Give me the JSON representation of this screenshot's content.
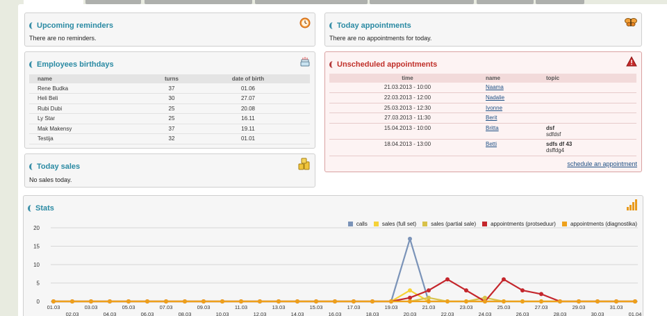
{
  "colors": {
    "accent_title": "#2a8aa3",
    "alert_title": "#c0302a",
    "link": "#1e4f84"
  },
  "reminders": {
    "title": "Upcoming reminders",
    "empty_text": "There are no reminders.",
    "icon": "clock-icon"
  },
  "today_appointments": {
    "title": "Today appointments",
    "empty_text": "There are no appointments for today.",
    "icon": "butterfly-icon"
  },
  "birthdays": {
    "title": "Employees birthdays",
    "icon": "cake-icon",
    "columns": [
      "name",
      "turns",
      "date of birth"
    ],
    "rows": [
      [
        "Rene Budka",
        "37",
        "01.06"
      ],
      [
        "Heli Beli",
        "30",
        "27.07"
      ],
      [
        "Rubi Dubi",
        "25",
        "20.08"
      ],
      [
        "Ly Star",
        "25",
        "16.11"
      ],
      [
        "Mak Makensy",
        "37",
        "19.11"
      ],
      [
        "Testija",
        "32",
        "01.01"
      ]
    ]
  },
  "unscheduled": {
    "title": "Unscheduled appointments",
    "icon": "warning-icon",
    "columns": [
      "time",
      "name",
      "topic"
    ],
    "rows": [
      {
        "time": "21.03.2013 - 10:00",
        "name": "Naama",
        "topic": "",
        "topic_sub": ""
      },
      {
        "time": "22.03.2013 - 12:00",
        "name": "Nadalie",
        "topic": "",
        "topic_sub": ""
      },
      {
        "time": "25.03.2013 - 12:30",
        "name": "Ivonne",
        "topic": "",
        "topic_sub": ""
      },
      {
        "time": "27.03.2013 - 11:30",
        "name": "Berit",
        "topic": "",
        "topic_sub": ""
      },
      {
        "time": "15.04.2013 - 10:00",
        "name": "Britta",
        "topic": "dsf",
        "topic_sub": "sdfdsf"
      },
      {
        "time": "18.04.2013 - 13:00",
        "name": "Betti",
        "topic": "sdfs df 43",
        "topic_sub": "dsffdg4"
      }
    ],
    "schedule_link": "schedule an appointment"
  },
  "today_sales": {
    "title": "Today sales",
    "empty_text": "No sales today.",
    "icon": "coins-icon"
  },
  "stats": {
    "title": "Stats",
    "icon": "bar-chart-icon"
  },
  "chart_data": {
    "type": "line",
    "title": "",
    "xlabel": "",
    "ylabel": "",
    "ylim": [
      0,
      20
    ],
    "yticks": [
      0,
      5,
      10,
      15,
      20
    ],
    "grid": true,
    "legend_position": "top-right",
    "x": [
      "01.03",
      "02.03",
      "03.03",
      "04.03",
      "05.03",
      "06.03",
      "07.03",
      "08.03",
      "09.03",
      "10.03",
      "11.03",
      "12.03",
      "13.03",
      "14.03",
      "15.03",
      "16.03",
      "17.03",
      "18.03",
      "19.03",
      "20.03",
      "21.03",
      "22.03",
      "23.03",
      "24.03",
      "25.03",
      "26.03",
      "27.03",
      "28.03",
      "29.03",
      "30.03",
      "31.03",
      "01.04"
    ],
    "series": [
      {
        "name": "calls",
        "color": "#7a93b8",
        "values": [
          0,
          0,
          0,
          0,
          0,
          0,
          0,
          0,
          0,
          0,
          0,
          0,
          0,
          0,
          0,
          0,
          0,
          0,
          0,
          17,
          0,
          0,
          0,
          0,
          0,
          0,
          0,
          0,
          0,
          0,
          0,
          0
        ]
      },
      {
        "name": "sales (full set)",
        "color": "#f5d238",
        "values": [
          0,
          0,
          0,
          0,
          0,
          0,
          0,
          0,
          0,
          0,
          0,
          0,
          0,
          0,
          0,
          0,
          0,
          0,
          0,
          3,
          0,
          0,
          0,
          0,
          0,
          0,
          0,
          0,
          0,
          0,
          0,
          0
        ]
      },
      {
        "name": "sales (partial sale)",
        "color": "#d8c24a",
        "values": [
          0,
          0,
          0,
          0,
          0,
          0,
          0,
          0,
          0,
          0,
          0,
          0,
          0,
          0,
          0,
          0,
          0,
          0,
          0,
          0,
          1,
          0,
          0,
          1,
          0,
          0,
          0,
          0,
          0,
          0,
          0,
          0
        ]
      },
      {
        "name": "appointments (protseduur)",
        "color": "#c4262c",
        "values": [
          0,
          0,
          0,
          0,
          0,
          0,
          0,
          0,
          0,
          0,
          0,
          0,
          0,
          0,
          0,
          0,
          0,
          0,
          0,
          1,
          3,
          6,
          3,
          0,
          6,
          3,
          2,
          0,
          0,
          0,
          0,
          0
        ]
      },
      {
        "name": "appointments (diagnostika)",
        "color": "#eea11c",
        "values": [
          0,
          0,
          0,
          0,
          0,
          0,
          0,
          0,
          0,
          0,
          0,
          0,
          0,
          0,
          0,
          0,
          0,
          0,
          0,
          0,
          0,
          0,
          0,
          0,
          0,
          0,
          0,
          0,
          0,
          0,
          0,
          0
        ]
      }
    ]
  }
}
